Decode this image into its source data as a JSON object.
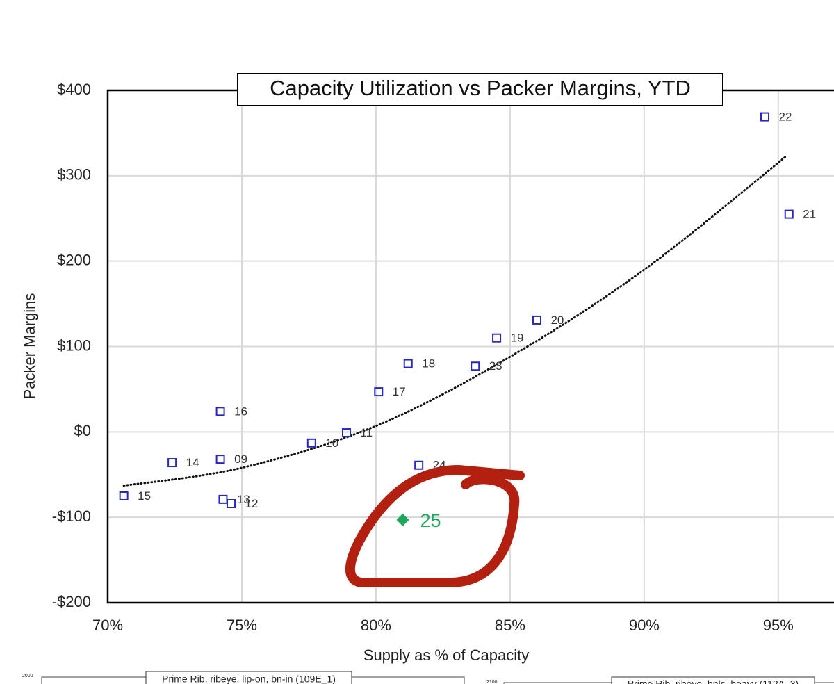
{
  "chart_data": {
    "type": "scatter",
    "title": "Capacity Utilization vs Packer Margins, YTD",
    "x_label": "Supply as % of Capacity",
    "y_label": "Packer Margins",
    "xlim": [
      70,
      97
    ],
    "ylim": [
      -200,
      400
    ],
    "xticks": [
      {
        "value": 70,
        "label": "70%"
      },
      {
        "value": 75,
        "label": "75%"
      },
      {
        "value": 80,
        "label": "80%"
      },
      {
        "value": 85,
        "label": "85%"
      },
      {
        "value": 90,
        "label": "90%"
      },
      {
        "value": 95,
        "label": "95%"
      }
    ],
    "yticks": [
      {
        "value": -200,
        "label": "-$200"
      },
      {
        "value": -100,
        "label": "-$100"
      },
      {
        "value": 0,
        "label": "$0"
      },
      {
        "value": 100,
        "label": "$100"
      },
      {
        "value": 200,
        "label": "$200"
      },
      {
        "value": 300,
        "label": "$300"
      },
      {
        "value": 400,
        "label": "$400"
      }
    ],
    "grid": true,
    "series": [
      {
        "color": "#2626c4",
        "marker": "open-square",
        "x": [
          94.5,
          95.4,
          86.0,
          84.5,
          81.2,
          83.7,
          80.1,
          74.2,
          78.9,
          77.6,
          81.6,
          72.4,
          74.2,
          70.6,
          74.3,
          74.6
        ],
        "values": [
          369,
          255,
          131,
          110,
          80,
          77,
          47,
          24,
          -1,
          -13,
          -39,
          -36,
          -32,
          -75,
          -79,
          -84
        ],
        "labels": [
          "22",
          "21",
          "20",
          "19",
          "18",
          "23",
          "17",
          "16",
          "11",
          "10",
          "24",
          "14",
          "09",
          "15",
          "13",
          "12"
        ]
      },
      {
        "color": "#1aa85a",
        "marker": "diamond",
        "x": [
          81.0
        ],
        "values": [
          -103
        ],
        "labels": [
          "25"
        ]
      }
    ],
    "trendline": {
      "color": "#111111",
      "x": [
        70.6,
        75,
        80,
        85,
        90,
        95.3
      ],
      "values": [
        -63,
        -42,
        7,
        88,
        190,
        323
      ]
    }
  },
  "partial_charts": [
    {
      "title": "Prime Rib, ribeye, lip-on, bn-in (109E_1)",
      "y_top_label": "2000"
    },
    {
      "title": "Prime Rib, ribeye, bnls, heavy (112A_3)",
      "y_top_label": "2100"
    }
  ]
}
